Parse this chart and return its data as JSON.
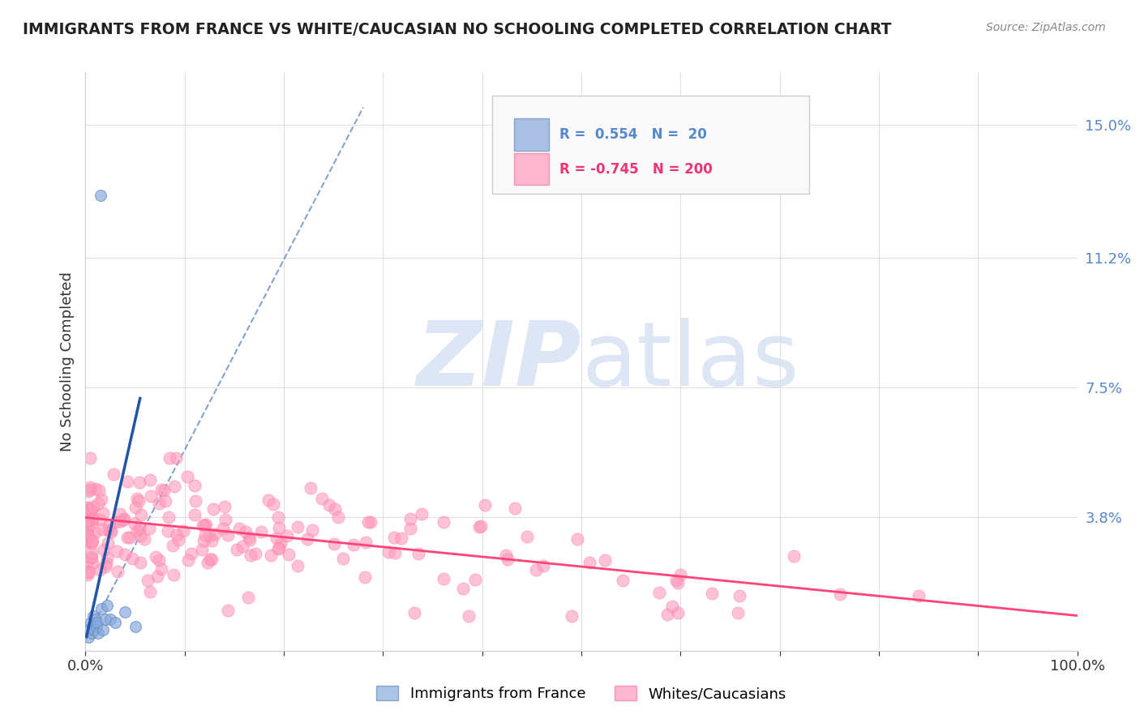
{
  "title": "IMMIGRANTS FROM FRANCE VS WHITE/CAUCASIAN NO SCHOOLING COMPLETED CORRELATION CHART",
  "source": "Source: ZipAtlas.com",
  "ylabel": "No Schooling Completed",
  "y_ticks": [
    0.0,
    0.038,
    0.075,
    0.112,
    0.15
  ],
  "y_tick_labels": [
    "",
    "3.8%",
    "7.5%",
    "11.2%",
    "15.0%"
  ],
  "xlim": [
    0.0,
    1.0
  ],
  "ylim": [
    0.0,
    0.165
  ],
  "r_blue": 0.554,
  "n_blue": 20,
  "r_pink": -0.745,
  "n_pink": 200,
  "blue_scatter_color": "#88AADD",
  "pink_scatter_color": "#FF99BB",
  "blue_scatter_edge": "#6688BB",
  "pink_scatter_edge": "#FF7799",
  "blue_line_color": "#2255AA",
  "pink_line_color": "#FF4477",
  "dashed_line_color": "#7799CC",
  "watermark_zip_color": "#DDE6F5",
  "watermark_atlas_color": "#DDE6F5",
  "grid_color": "#DDDDDD",
  "background_color": "#FFFFFF",
  "title_color": "#222222",
  "source_color": "#888888",
  "ytick_color": "#5588CC",
  "xtick_color": "#333333",
  "ylabel_color": "#333333",
  "legend_edge_color": "#CCCCCC",
  "legend_face_color": "#FAFAFA",
  "blue_legend_color": "#88AADD",
  "pink_legend_color": "#FF99BB",
  "bottom_legend_blue": "Immigrants from France",
  "bottom_legend_pink": "Whites/Caucasians"
}
